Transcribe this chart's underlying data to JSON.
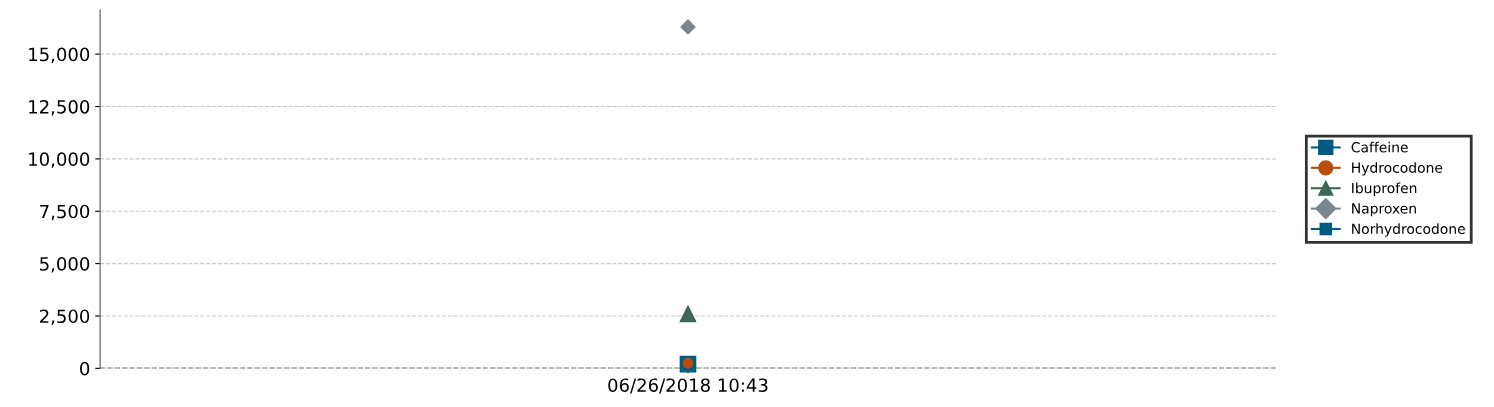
{
  "chart_data": {
    "type": "line",
    "categories": [
      "06/26/2018 10:43"
    ],
    "series": [
      {
        "name": "Caffeine",
        "color": "#005b82",
        "marker": "square",
        "values": [
          200
        ]
      },
      {
        "name": "Hydrocodone",
        "color": "#b94f0a",
        "marker": "circle",
        "values": [
          250
        ]
      },
      {
        "name": "Ibuprofen",
        "color": "#3e6654",
        "marker": "triangle",
        "values": [
          2600
        ]
      },
      {
        "name": "Naproxen",
        "color": "#7a858d",
        "marker": "diamond",
        "values": [
          16300
        ]
      },
      {
        "name": "Norhydrocodone",
        "color": "#005b82",
        "marker": "square",
        "values": [
          null
        ]
      }
    ],
    "ylim": [
      0,
      17100
    ],
    "yticks": [
      {
        "value": 0,
        "label": "0"
      },
      {
        "value": 2500,
        "label": "2,500"
      },
      {
        "value": 5000,
        "label": "5,000"
      },
      {
        "value": 7500,
        "label": "7,500"
      },
      {
        "value": 10000,
        "label": "10,000"
      },
      {
        "value": 12500,
        "label": "12,500"
      },
      {
        "value": 15000,
        "label": "15,000"
      }
    ],
    "ref_lines": [
      {
        "axis": "y",
        "value": 0,
        "color": "#000000",
        "line_style": "dashed"
      }
    ],
    "grid": "y",
    "legend": "right"
  }
}
